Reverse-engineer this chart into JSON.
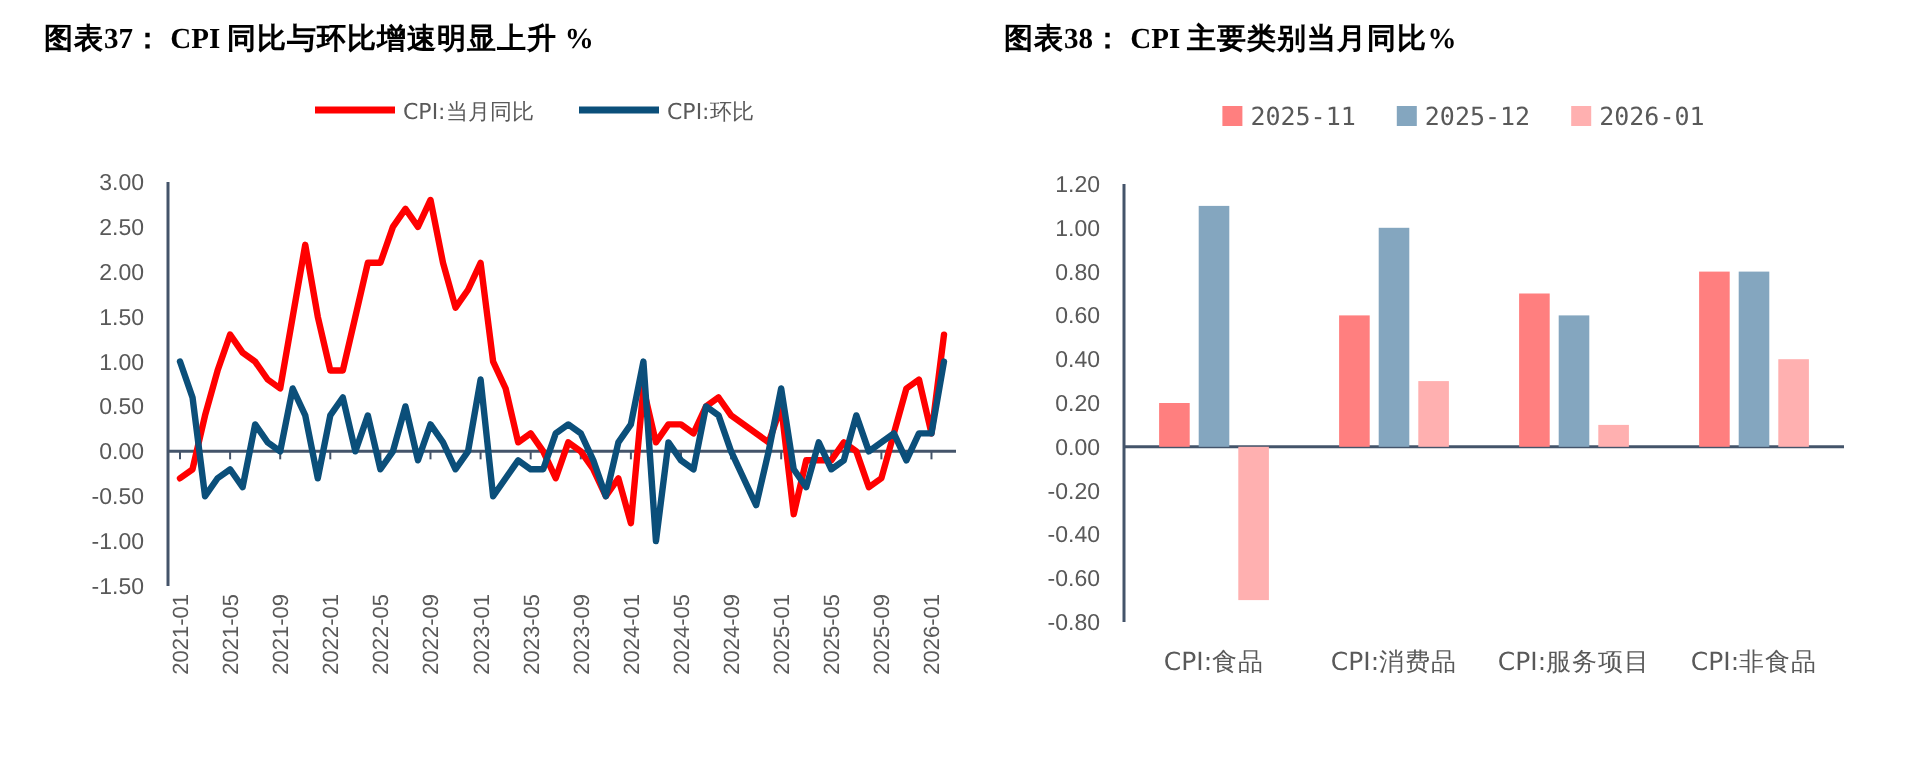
{
  "chart_data": [
    {
      "type": "line",
      "title": "图表37： CPI 同比与环比增速明显上升 %",
      "x": [
        "2021-01",
        "2021-02",
        "2021-03",
        "2021-04",
        "2021-05",
        "2021-06",
        "2021-07",
        "2021-08",
        "2021-09",
        "2021-10",
        "2021-11",
        "2021-12",
        "2022-01",
        "2022-02",
        "2022-03",
        "2022-04",
        "2022-05",
        "2022-06",
        "2022-07",
        "2022-08",
        "2022-09",
        "2022-10",
        "2022-11",
        "2022-12",
        "2023-01",
        "2023-02",
        "2023-03",
        "2023-04",
        "2023-05",
        "2023-06",
        "2023-07",
        "2023-08",
        "2023-09",
        "2023-10",
        "2023-11",
        "2023-12",
        "2024-01",
        "2024-02",
        "2024-03",
        "2024-04",
        "2024-05",
        "2024-06",
        "2024-07",
        "2024-08",
        "2024-09",
        "2024-10",
        "2024-11",
        "2024-12",
        "2025-01",
        "2025-02",
        "2025-03",
        "2025-04",
        "2025-05",
        "2025-06",
        "2025-07",
        "2025-08",
        "2025-09",
        "2025-10",
        "2025-11",
        "2025-12",
        "2026-01",
        "2026-02"
      ],
      "series": [
        {
          "name": "CPI:当月同比",
          "color": "#ff0000",
          "values": [
            -0.3,
            -0.2,
            0.4,
            0.9,
            1.3,
            1.1,
            1.0,
            0.8,
            0.7,
            1.5,
            2.3,
            1.5,
            0.9,
            0.9,
            1.5,
            2.1,
            2.1,
            2.5,
            2.7,
            2.5,
            2.8,
            2.1,
            1.6,
            1.8,
            2.1,
            1.0,
            0.7,
            0.1,
            0.2,
            0.0,
            -0.3,
            0.1,
            0.0,
            -0.2,
            -0.5,
            -0.3,
            -0.8,
            0.7,
            0.1,
            0.3,
            0.3,
            0.2,
            0.5,
            0.6,
            0.4,
            0.3,
            0.2,
            0.1,
            0.5,
            -0.7,
            -0.1,
            -0.1,
            -0.1,
            0.1,
            0.0,
            -0.4,
            -0.3,
            0.2,
            0.7,
            0.8,
            0.2,
            1.3
          ]
        },
        {
          "name": "CPI:环比",
          "color": "#0b4f7a",
          "values": [
            1.0,
            0.6,
            -0.5,
            -0.3,
            -0.2,
            -0.4,
            0.3,
            0.1,
            0.0,
            0.7,
            0.4,
            -0.3,
            0.4,
            0.6,
            0.0,
            0.4,
            -0.2,
            0.0,
            0.5,
            -0.1,
            0.3,
            0.1,
            -0.2,
            0.0,
            0.8,
            -0.5,
            -0.3,
            -0.1,
            -0.2,
            -0.2,
            0.2,
            0.3,
            0.2,
            -0.1,
            -0.5,
            0.1,
            0.3,
            1.0,
            -1.0,
            0.1,
            -0.1,
            -0.2,
            0.5,
            0.4,
            0.0,
            -0.3,
            -0.6,
            0.0,
            0.7,
            -0.2,
            -0.4,
            0.1,
            -0.2,
            -0.1,
            0.4,
            0.0,
            0.1,
            0.2,
            -0.1,
            0.2,
            0.2,
            1.0
          ]
        }
      ],
      "xlim": [
        "2021-01",
        "2026-02"
      ],
      "xticks": [
        "2021-01",
        "2021-05",
        "2021-09",
        "2022-01",
        "2022-05",
        "2022-09",
        "2023-01",
        "2023-05",
        "2023-09",
        "2024-01",
        "2024-05",
        "2024-09",
        "2025-01",
        "2025-05",
        "2025-09",
        "2026-01"
      ],
      "ylim": [
        -1.5,
        3.0
      ],
      "yticks": [
        {
          "value": -1.5,
          "label": "-1.50"
        },
        {
          "value": -1.0,
          "label": "-1.00"
        },
        {
          "value": -0.5,
          "label": "-0.50"
        },
        {
          "value": 0,
          "label": "0.00"
        },
        {
          "value": 0.5,
          "label": "0.50"
        },
        {
          "value": 1.0,
          "label": "1.00"
        },
        {
          "value": 1.5,
          "label": "1.50"
        },
        {
          "value": 2.0,
          "label": "2.00"
        },
        {
          "value": 2.5,
          "label": "2.50"
        },
        {
          "value": 3.0,
          "label": "3.00"
        }
      ],
      "legend": "top",
      "marker": "none",
      "line_style": "solid"
    },
    {
      "type": "bar",
      "title": "图表38： CPI 主要类别当月同比%",
      "categories": [
        "CPI:食品",
        "CPI:消费品",
        "CPI:服务项目",
        "CPI:非食品"
      ],
      "series": [
        {
          "name": "2025-11",
          "color": "#ff7f7f",
          "values": [
            0.2,
            0.6,
            0.7,
            0.8
          ]
        },
        {
          "name": "2025-12",
          "color": "#84a6bf",
          "values": [
            1.1,
            1.0,
            0.6,
            0.8
          ]
        },
        {
          "name": "2026-01",
          "color": "#ffb0b0",
          "values": [
            -0.7,
            0.3,
            0.1,
            0.4
          ]
        }
      ],
      "ylim": [
        -0.8,
        1.2
      ],
      "yticks": [
        {
          "value": -0.8,
          "label": "-0.80"
        },
        {
          "value": -0.6,
          "label": "-0.60"
        },
        {
          "value": -0.4,
          "label": "-0.40"
        },
        {
          "value": -0.2,
          "label": "-0.20"
        },
        {
          "value": 0,
          "label": "0.00"
        },
        {
          "value": 0.2,
          "label": "0.20"
        },
        {
          "value": 0.4,
          "label": "0.40"
        },
        {
          "value": 0.6,
          "label": "0.60"
        },
        {
          "value": 0.8,
          "label": "0.80"
        },
        {
          "value": 1.0,
          "label": "1.00"
        },
        {
          "value": 1.2,
          "label": "1.20"
        }
      ],
      "legend": "top"
    }
  ]
}
